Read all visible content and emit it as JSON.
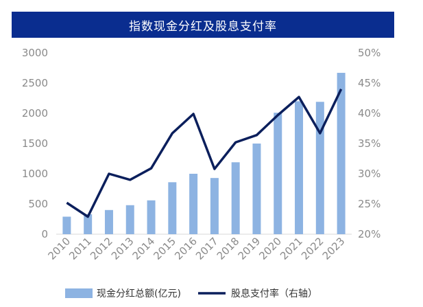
{
  "chart_data": {
    "type": "bar",
    "title": "指数现金分红及股息支付率",
    "categories": [
      "2010",
      "2011",
      "2012",
      "2013",
      "2014",
      "2015",
      "2016",
      "2017",
      "2018",
      "2019",
      "2020",
      "2021",
      "2022",
      "2023"
    ],
    "series": [
      {
        "name": "现金分红总额(亿元)",
        "type": "bar",
        "axis": "left",
        "values": [
          290,
          330,
          400,
          480,
          560,
          860,
          1000,
          930,
          1190,
          1500,
          2010,
          2200,
          2190,
          2670
        ]
      },
      {
        "name": "股息支付率（右轴）",
        "type": "line",
        "axis": "right",
        "values": [
          25.2,
          22.9,
          30.0,
          29.0,
          30.9,
          36.7,
          39.9,
          30.8,
          35.2,
          36.4,
          39.7,
          42.7,
          36.7,
          44.0
        ]
      }
    ],
    "left_ticks": [
      "0",
      "500",
      "1000",
      "1500",
      "2000",
      "2500",
      "3000"
    ],
    "right_ticks": [
      "20%",
      "25%",
      "30%",
      "35%",
      "40%",
      "45%",
      "50%"
    ],
    "ylim_left": [
      0,
      3000
    ],
    "ylim_right": [
      20,
      50
    ],
    "colors": {
      "bar": "#8db3e2",
      "line": "#0b1f5c",
      "title_bg": "#0a2d8f"
    }
  }
}
